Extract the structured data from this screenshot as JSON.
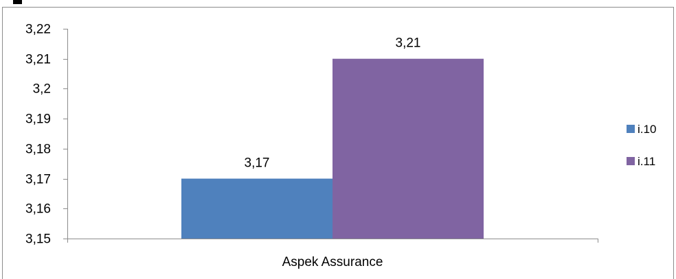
{
  "chart_data": {
    "type": "bar",
    "title": "",
    "xlabel": "",
    "ylabel": "",
    "categories": [
      "Aspek Assurance"
    ],
    "series": [
      {
        "name": "i.10",
        "values": [
          3.17
        ],
        "color": "#4f81bd",
        "value_label": "3,17"
      },
      {
        "name": "i.11",
        "values": [
          3.21
        ],
        "color": "#8064a2",
        "value_label": "3,21"
      }
    ],
    "ylim": [
      3.15,
      3.22
    ],
    "y_ticks": [
      {
        "value": 3.22,
        "label": "3,22"
      },
      {
        "value": 3.21,
        "label": "3,21"
      },
      {
        "value": 3.2,
        "label": "3,2"
      },
      {
        "value": 3.19,
        "label": "3,19"
      },
      {
        "value": 3.18,
        "label": "3,18"
      },
      {
        "value": 3.17,
        "label": "3,17"
      },
      {
        "value": 3.16,
        "label": "3,16"
      },
      {
        "value": 3.15,
        "label": "3,15"
      }
    ],
    "grid": false,
    "legend_position": "right"
  }
}
